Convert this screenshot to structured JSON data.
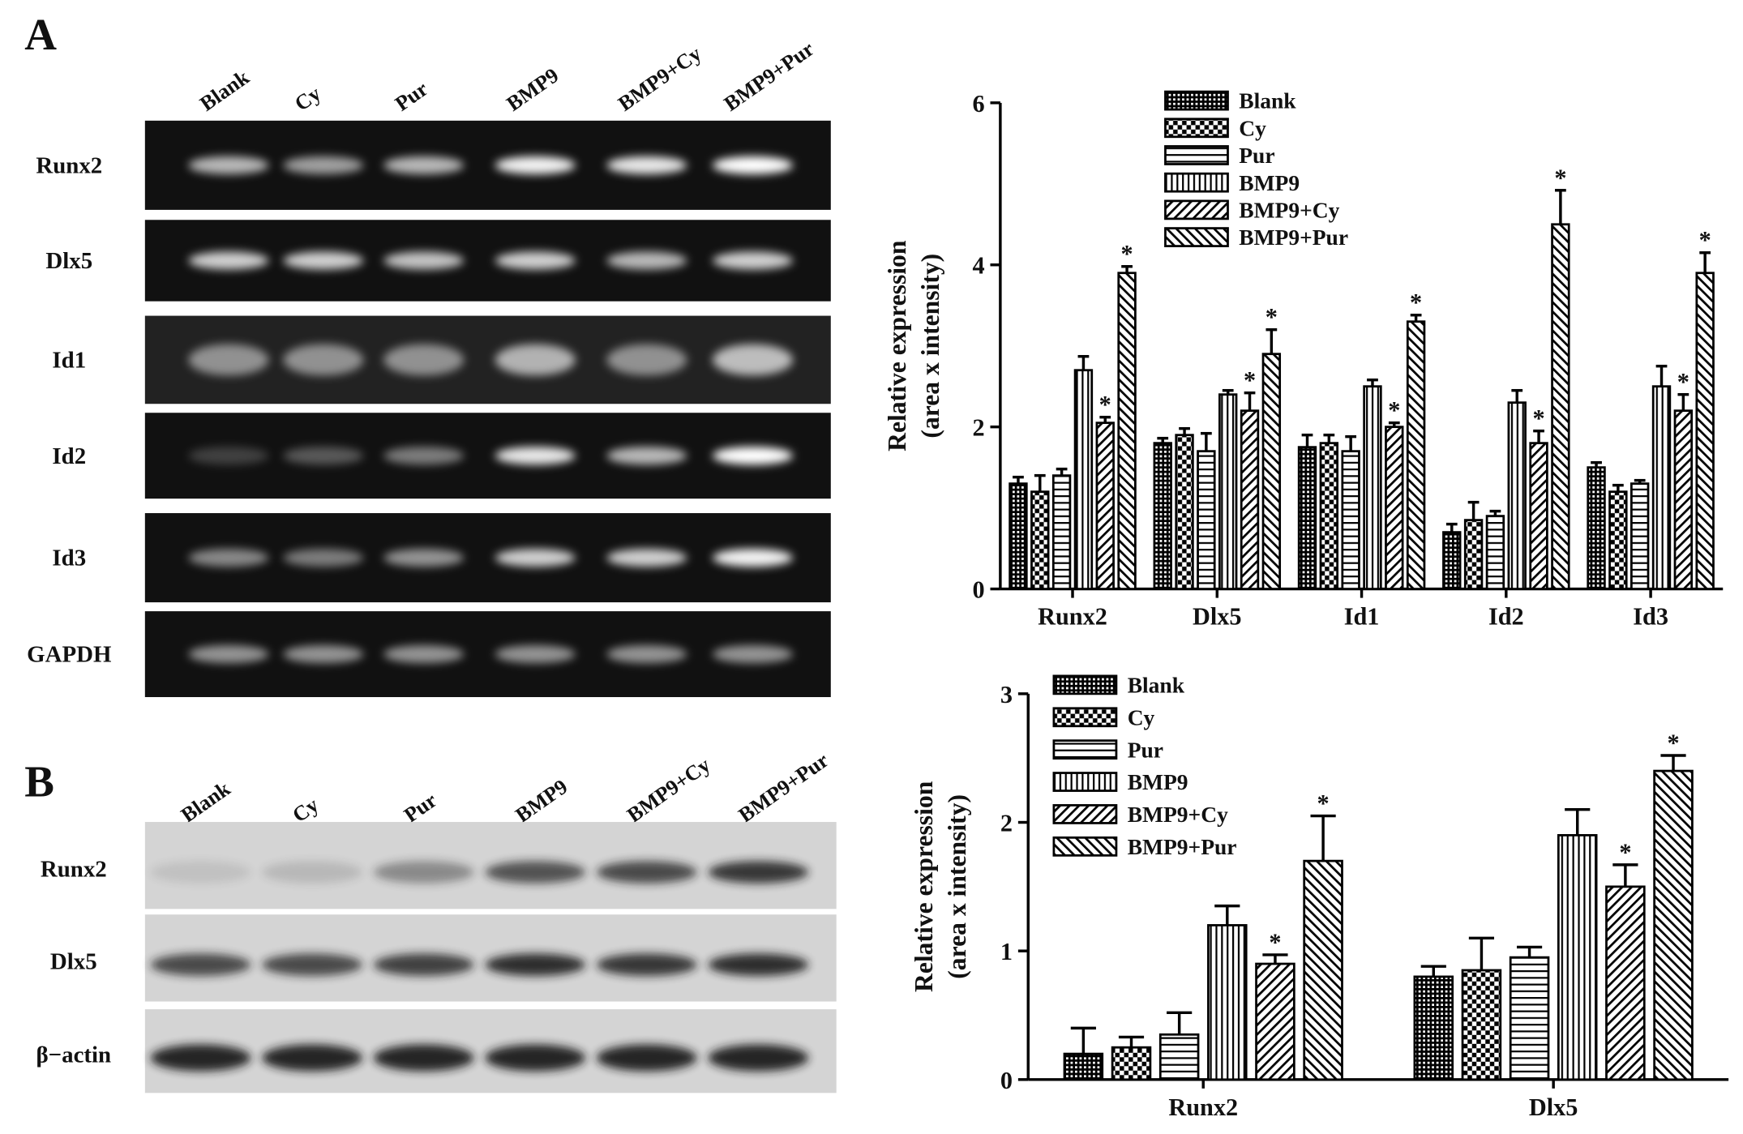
{
  "panel_a": {
    "label": "A",
    "lanes": [
      "Blank",
      "Cy",
      "Pur",
      "BMP9",
      "BMP9+Cy",
      "BMP9+Pur"
    ],
    "genes": [
      "Runx2",
      "Dlx5",
      "Id1",
      "Id2",
      "Id3",
      "GAPDH"
    ]
  },
  "panel_b": {
    "label": "B",
    "lanes": [
      "Blank",
      "Cy",
      "Pur",
      "BMP9",
      "BMP9+Cy",
      "BMP9+Pur"
    ],
    "proteins": [
      "Runx2",
      "Dlx5",
      "β−actin"
    ]
  },
  "chart_data": [
    {
      "type": "bar",
      "ylabel": [
        "Relative expression",
        "(area x intensity)"
      ],
      "categories": [
        "Runx2",
        "Dlx5",
        "Id1",
        "Id2",
        "Id3"
      ],
      "ylim": [
        0,
        6
      ],
      "yticks": [
        0,
        2,
        4,
        6
      ],
      "legend": "top",
      "series": [
        {
          "name": "Blank",
          "color": "#000000",
          "pattern": "dots",
          "values": [
            1.3,
            1.8,
            1.75,
            0.7,
            1.5
          ],
          "errors": [
            0.08,
            0.06,
            0.15,
            0.1,
            0.06
          ]
        },
        {
          "name": "Cy",
          "color": "#000000",
          "pattern": "checker",
          "values": [
            1.2,
            1.9,
            1.8,
            0.85,
            1.2
          ],
          "errors": [
            0.2,
            0.08,
            0.1,
            0.22,
            0.08
          ]
        },
        {
          "name": "Pur",
          "color": "#000000",
          "pattern": "hlines",
          "values": [
            1.4,
            1.7,
            1.7,
            0.9,
            1.3
          ],
          "errors": [
            0.08,
            0.22,
            0.18,
            0.06,
            0.04
          ]
        },
        {
          "name": "BMP9",
          "color": "#000000",
          "pattern": "vlines",
          "values": [
            2.7,
            2.4,
            2.5,
            2.3,
            2.5
          ],
          "errors": [
            0.17,
            0.05,
            0.08,
            0.15,
            0.25
          ]
        },
        {
          "name": "BMP9+Cy",
          "color": "#000000",
          "pattern": "diag-up",
          "values": [
            2.05,
            2.2,
            2.0,
            1.8,
            2.2
          ],
          "errors": [
            0.07,
            0.22,
            0.05,
            0.15,
            0.2
          ],
          "marks": [
            "*",
            "*",
            "*",
            "*",
            "*"
          ]
        },
        {
          "name": "BMP9+Pur",
          "color": "#000000",
          "pattern": "diag-down",
          "values": [
            3.9,
            2.9,
            3.3,
            4.5,
            3.9
          ],
          "errors": [
            0.08,
            0.3,
            0.08,
            0.42,
            0.25
          ],
          "marks": [
            "*",
            "*",
            "*",
            "*",
            "*"
          ]
        }
      ]
    },
    {
      "type": "bar",
      "ylabel": [
        "Relative expression",
        "(area x intensity)"
      ],
      "categories": [
        "Runx2",
        "Dlx5"
      ],
      "ylim": [
        0,
        3
      ],
      "yticks": [
        0,
        1,
        2,
        3
      ],
      "legend": "top-left",
      "series": [
        {
          "name": "Blank",
          "color": "#000000",
          "pattern": "dots",
          "values": [
            0.2,
            0.8
          ],
          "errors": [
            0.2,
            0.08
          ]
        },
        {
          "name": "Cy",
          "color": "#000000",
          "pattern": "checker",
          "values": [
            0.25,
            0.85
          ],
          "errors": [
            0.08,
            0.25
          ]
        },
        {
          "name": "Pur",
          "color": "#000000",
          "pattern": "hlines",
          "values": [
            0.35,
            0.95
          ],
          "errors": [
            0.17,
            0.08
          ]
        },
        {
          "name": "BMP9",
          "color": "#000000",
          "pattern": "vlines",
          "values": [
            1.2,
            1.9
          ],
          "errors": [
            0.15,
            0.2
          ]
        },
        {
          "name": "BMP9+Cy",
          "color": "#000000",
          "pattern": "diag-up",
          "values": [
            0.9,
            1.5
          ],
          "errors": [
            0.07,
            0.17
          ],
          "marks": [
            "*",
            "*"
          ]
        },
        {
          "name": "BMP9+Pur",
          "color": "#000000",
          "pattern": "diag-down",
          "values": [
            1.7,
            2.4
          ],
          "errors": [
            0.35,
            0.12
          ],
          "marks": [
            "*",
            "*"
          ]
        }
      ]
    }
  ]
}
